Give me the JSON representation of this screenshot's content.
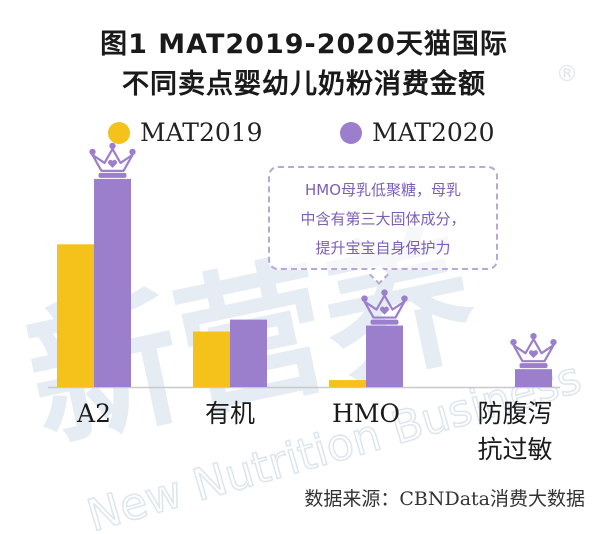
{
  "title_line1": "图1 MAT2019-2020天猫国际",
  "title_line2": "不同卖点婴幼儿奶粉消费金额",
  "callout": {
    "line1": "HMO母乳低聚糖，母乳",
    "line2": "中含有第三大固体成分，",
    "line3": "提升宝宝自身保护力"
  },
  "source": "数据来源：CBNData消费大数据",
  "watermark": {
    "brand": "新营养",
    "tagline": "New Nutrition Business",
    "registered": "®"
  },
  "colors": {
    "mat2019": "#f4c21b",
    "mat2020": "#9b7fcc",
    "crown": "#9b7fcc",
    "watermark": "#e4ebf2"
  },
  "chart_data": {
    "type": "bar",
    "categories": [
      "A2",
      "有机",
      "HMO",
      "防腹泻\n抗过敏"
    ],
    "series": [
      {
        "name": "MAT2019",
        "values": [
          7.2,
          2.8,
          0.35,
          0
        ]
      },
      {
        "name": "MAT2020",
        "values": [
          10.5,
          3.4,
          3.1,
          0.9
        ]
      }
    ],
    "title": "",
    "xlabel": "",
    "ylabel": "",
    "ylim": [
      0,
      11
    ],
    "grid": false,
    "axis_ticks": false,
    "legend": "top-center",
    "highlight_icon": "crown-icon",
    "highlight_categories": [
      "A2",
      "HMO",
      "防腹泻\n抗过敏"
    ]
  }
}
